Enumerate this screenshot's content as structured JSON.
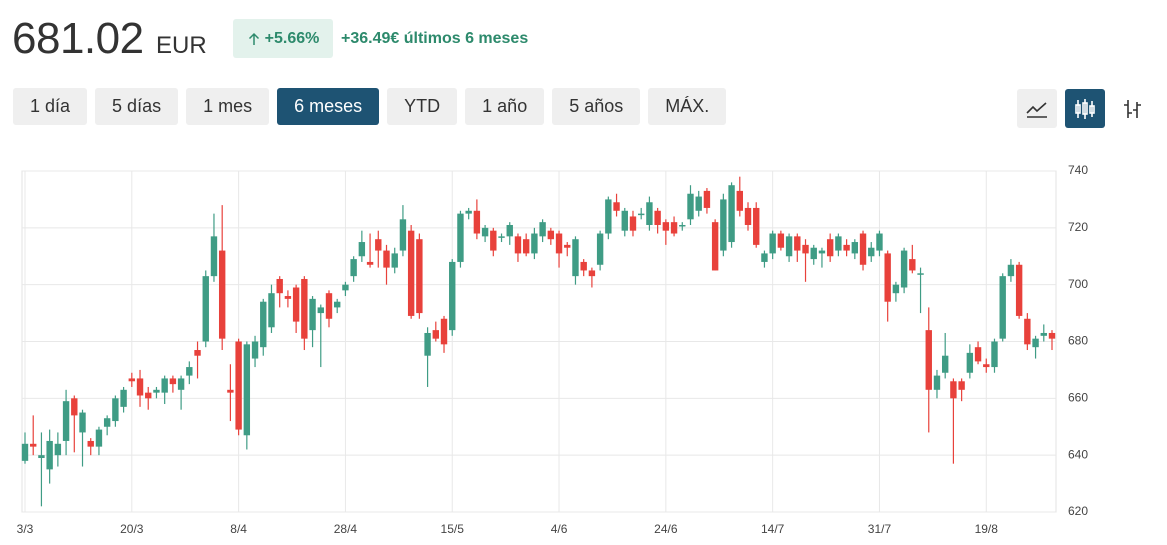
{
  "header": {
    "price": "681.02",
    "currency": "EUR",
    "change_percent": "+5.66%",
    "change_text": "+36.49€ últimos 6 meses"
  },
  "range_buttons": [
    "1 día",
    "5 días",
    "1 mes",
    "6 meses",
    "YTD",
    "1 año",
    "5 años",
    "MÁX."
  ],
  "selected_range": 3,
  "chart_data": {
    "type": "candlestick",
    "up_color": "#3f9c85",
    "down_color": "#e8413b",
    "ylim": [
      620,
      740
    ],
    "yticks": [
      620,
      640,
      660,
      680,
      700,
      720,
      740
    ],
    "grid": true,
    "y_axis_side": "right",
    "categories": [
      "3/3",
      null,
      null,
      null,
      null,
      null,
      null,
      null,
      null,
      null,
      null,
      null,
      null,
      "20/3",
      null,
      null,
      null,
      null,
      null,
      null,
      null,
      null,
      null,
      null,
      null,
      null,
      "8/4",
      null,
      null,
      null,
      null,
      null,
      null,
      null,
      null,
      null,
      null,
      null,
      null,
      "28/4",
      null,
      null,
      null,
      null,
      null,
      null,
      null,
      null,
      null,
      null,
      null,
      null,
      "15/5",
      null,
      null,
      null,
      null,
      null,
      null,
      null,
      null,
      null,
      null,
      null,
      null,
      "4/6",
      null,
      null,
      null,
      null,
      null,
      null,
      null,
      null,
      null,
      null,
      null,
      null,
      "24/6",
      null,
      null,
      null,
      null,
      null,
      null,
      null,
      null,
      null,
      null,
      null,
      null,
      "14/7",
      null,
      null,
      null,
      null,
      null,
      null,
      null,
      null,
      null,
      null,
      null,
      null,
      "31/7",
      null,
      null,
      null,
      null,
      null,
      null,
      null,
      null,
      null,
      null,
      null,
      null,
      "19/8",
      null,
      null,
      null,
      null,
      null,
      null,
      null,
      null
    ],
    "open": [
      638,
      644,
      639,
      635,
      640,
      645,
      660,
      648,
      645,
      643,
      650,
      652,
      657,
      667,
      667,
      662,
      662,
      662,
      667,
      663,
      668,
      677,
      680,
      703,
      712,
      663,
      680,
      647,
      674,
      678,
      685,
      702,
      696,
      699,
      702,
      684,
      690,
      697,
      692,
      698,
      703,
      710,
      708,
      716,
      712,
      706,
      712,
      719,
      716,
      675,
      684,
      688,
      684,
      708,
      725,
      726,
      717,
      719,
      717,
      717,
      717,
      716,
      711,
      717,
      719,
      718,
      714,
      703,
      708,
      705,
      707,
      718,
      729,
      719,
      724,
      725,
      721,
      726,
      722,
      722,
      721,
      723,
      726,
      733,
      722,
      712,
      715,
      733,
      727,
      727,
      708,
      711,
      718,
      710,
      717,
      714,
      709,
      711,
      716,
      712,
      714,
      711,
      718,
      710,
      712,
      711,
      697,
      699,
      709,
      704,
      684,
      663,
      669,
      666,
      666,
      669,
      678,
      672,
      671,
      681,
      703,
      707,
      688,
      678,
      682,
      683
    ],
    "high": [
      648,
      654,
      648,
      649,
      648,
      663,
      661,
      656,
      646,
      650,
      654,
      661,
      664,
      669,
      670,
      664,
      664,
      668,
      668,
      668,
      673,
      680,
      705,
      725,
      728,
      672,
      681,
      680,
      682,
      695,
      700,
      703,
      698,
      700,
      703,
      696,
      693,
      698,
      695,
      701,
      710,
      719,
      718,
      719,
      714,
      713,
      728,
      721,
      718,
      685,
      687,
      689,
      709,
      726,
      727,
      730,
      721,
      720,
      718,
      722,
      718,
      718,
      720,
      723,
      720,
      719,
      715,
      717,
      709,
      706,
      719,
      731,
      732,
      727,
      726,
      727,
      731,
      727,
      723,
      724,
      722,
      735,
      733,
      734,
      723,
      732,
      736,
      738,
      729,
      729,
      712,
      719,
      719,
      718,
      718,
      716,
      714,
      713,
      718,
      718,
      716,
      716,
      719,
      715,
      719,
      712,
      701,
      713,
      714,
      706,
      692,
      670,
      683,
      667,
      667,
      679,
      680,
      674,
      681,
      704,
      709,
      708,
      690,
      682,
      686,
      684
    ],
    "low": [
      637,
      640,
      622,
      630,
      636,
      640,
      641,
      636,
      640,
      640,
      647,
      650,
      655,
      664,
      657,
      656,
      660,
      658,
      662,
      656,
      665,
      667,
      678,
      701,
      677,
      652,
      647,
      642,
      671,
      675,
      683,
      692,
      692,
      683,
      677,
      678,
      671,
      685,
      690,
      696,
      701,
      708,
      706,
      706,
      700,
      704,
      710,
      688,
      688,
      664,
      680,
      676,
      682,
      706,
      723,
      716,
      715,
      710,
      715,
      714,
      708,
      710,
      709,
      715,
      714,
      706,
      710,
      700,
      703,
      699,
      705,
      716,
      724,
      717,
      717,
      723,
      719,
      718,
      714,
      717,
      719,
      721,
      724,
      725,
      705,
      710,
      713,
      724,
      719,
      713,
      706,
      709,
      712,
      708,
      708,
      701,
      707,
      706,
      708,
      710,
      710,
      709,
      705,
      708,
      710,
      687,
      694,
      697,
      704,
      690,
      648,
      660,
      667,
      637,
      659,
      667,
      672,
      669,
      669,
      680,
      701,
      688,
      677,
      674,
      680,
      677
    ],
    "close": [
      644,
      643,
      640,
      645,
      644,
      659,
      654,
      655,
      643,
      649,
      653,
      660,
      663,
      666,
      661,
      660,
      663,
      667,
      665,
      667,
      671,
      675,
      703,
      717,
      681,
      662,
      649,
      679,
      680,
      694,
      697,
      697,
      695,
      687,
      681,
      695,
      692,
      688,
      694,
      700,
      709,
      715,
      707,
      712,
      706,
      711,
      723,
      689,
      690,
      683,
      681,
      679,
      708,
      725,
      726,
      718,
      720,
      712,
      717,
      721,
      711,
      711,
      718,
      722,
      716,
      711,
      713,
      716,
      705,
      703,
      718,
      730,
      726,
      726,
      719,
      725,
      729,
      721,
      719,
      718,
      721,
      732,
      731,
      727,
      705,
      730,
      735,
      726,
      721,
      714,
      711,
      718,
      713,
      717,
      712,
      711,
      713,
      712,
      710,
      717,
      712,
      715,
      707,
      713,
      718,
      694,
      700,
      712,
      705,
      704,
      663,
      668,
      675,
      660,
      663,
      676,
      673,
      671,
      680,
      703,
      707,
      689,
      679,
      681,
      683,
      681
    ]
  }
}
